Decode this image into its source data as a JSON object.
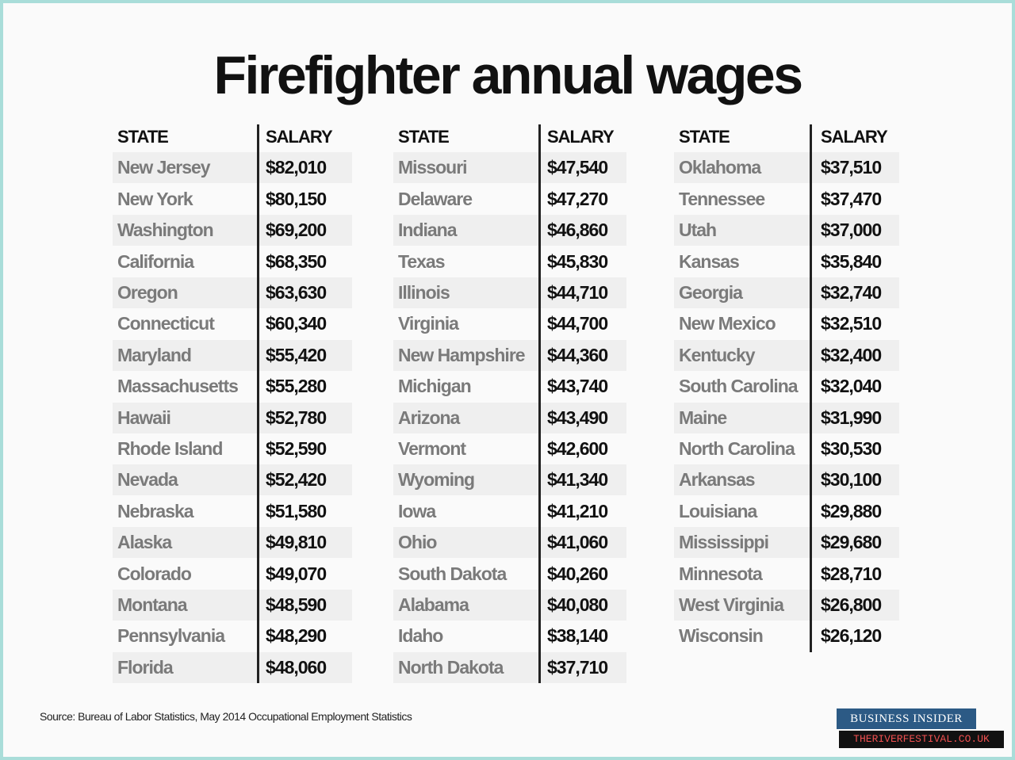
{
  "title": "Firefighter annual wages",
  "tables": [
    {
      "headers": [
        "STATE",
        "SALARY"
      ],
      "rows": [
        [
          "New Jersey",
          "$82,010"
        ],
        [
          "New York",
          "$80,150"
        ],
        [
          "Washington",
          "$69,200"
        ],
        [
          "California",
          "$68,350"
        ],
        [
          "Oregon",
          "$63,630"
        ],
        [
          "Connecticut",
          "$60,340"
        ],
        [
          "Maryland",
          "$55,420"
        ],
        [
          "Massachusetts",
          "$55,280"
        ],
        [
          "Hawaii",
          "$52,780"
        ],
        [
          "Rhode Island",
          "$52,590"
        ],
        [
          "Nevada",
          "$52,420"
        ],
        [
          "Nebraska",
          "$51,580"
        ],
        [
          "Alaska",
          "$49,810"
        ],
        [
          "Colorado",
          "$49,070"
        ],
        [
          "Montana",
          "$48,590"
        ],
        [
          "Pennsylvania",
          "$48,290"
        ],
        [
          "Florida",
          "$48,060"
        ]
      ]
    },
    {
      "headers": [
        "STATE",
        "SALARY"
      ],
      "rows": [
        [
          "Missouri",
          "$47,540"
        ],
        [
          "Delaware",
          "$47,270"
        ],
        [
          "Indiana",
          "$46,860"
        ],
        [
          "Texas",
          "$45,830"
        ],
        [
          "Illinois",
          "$44,710"
        ],
        [
          "Virginia",
          "$44,700"
        ],
        [
          "New Hampshire",
          "$44,360"
        ],
        [
          "Michigan",
          "$43,740"
        ],
        [
          "Arizona",
          "$43,490"
        ],
        [
          "Vermont",
          "$42,600"
        ],
        [
          "Wyoming",
          "$41,340"
        ],
        [
          "Iowa",
          "$41,210"
        ],
        [
          "Ohio",
          "$41,060"
        ],
        [
          "South Dakota",
          "$40,260"
        ],
        [
          "Alabama",
          "$40,080"
        ],
        [
          "Idaho",
          "$38,140"
        ],
        [
          "North Dakota",
          "$37,710"
        ]
      ]
    },
    {
      "headers": [
        "STATE",
        "SALARY"
      ],
      "rows": [
        [
          "Oklahoma",
          "$37,510"
        ],
        [
          "Tennessee",
          "$37,470"
        ],
        [
          "Utah",
          "$37,000"
        ],
        [
          "Kansas",
          "$35,840"
        ],
        [
          "Georgia",
          "$32,740"
        ],
        [
          "New Mexico",
          "$32,510"
        ],
        [
          "Kentucky",
          "$32,400"
        ],
        [
          "South Carolina",
          "$32,040"
        ],
        [
          "Maine",
          "$31,990"
        ],
        [
          "North Carolina",
          "$30,530"
        ],
        [
          "Arkansas",
          "$30,100"
        ],
        [
          "Louisiana",
          "$29,880"
        ],
        [
          "Mississippi",
          "$29,680"
        ],
        [
          "Minnesota",
          "$28,710"
        ],
        [
          "West Virginia",
          "$26,800"
        ],
        [
          "Wisconsin",
          "$26,120"
        ]
      ]
    }
  ],
  "source": "Source: Bureau of Labor Statistics, May 2014 Occupational Employment Statistics",
  "logo": "BUSINESS INSIDER",
  "watermark": "THERIVERFESTIVAL.CO.UK"
}
